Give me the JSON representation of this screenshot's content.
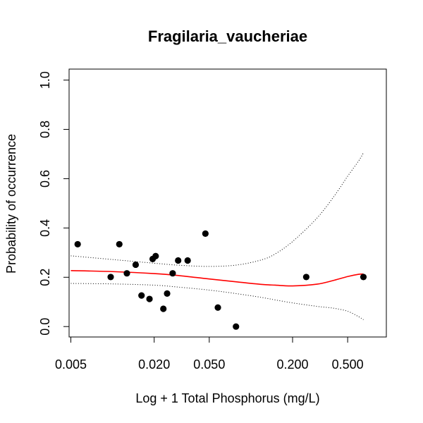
{
  "chart_data": {
    "type": "scatter",
    "title": "Fragilaria_vaucheriae",
    "xlabel": "Log + 1 Total Phosphorus (mg/L)",
    "ylabel": "Probability of occurrence",
    "x_scale": "log",
    "xlim": [
      0.005,
      0.8
    ],
    "ylim": [
      0.0,
      1.0
    ],
    "x_ticks": [
      0.005,
      0.02,
      0.05,
      0.2,
      0.5
    ],
    "x_tick_labels": [
      "0.005",
      "0.020",
      "0.050",
      "0.200",
      "0.500"
    ],
    "y_ticks": [
      0.0,
      0.2,
      0.4,
      0.6,
      0.8,
      1.0
    ],
    "y_tick_labels": [
      "0.0",
      "0.2",
      "0.4",
      "0.6",
      "0.8",
      "1.0"
    ],
    "grid": false,
    "points": [
      {
        "x": 0.0056,
        "y": 0.334
      },
      {
        "x": 0.0097,
        "y": 0.201
      },
      {
        "x": 0.0112,
        "y": 0.334
      },
      {
        "x": 0.0127,
        "y": 0.216
      },
      {
        "x": 0.0147,
        "y": 0.251
      },
      {
        "x": 0.0162,
        "y": 0.126
      },
      {
        "x": 0.0185,
        "y": 0.112
      },
      {
        "x": 0.0195,
        "y": 0.274
      },
      {
        "x": 0.0205,
        "y": 0.286
      },
      {
        "x": 0.0233,
        "y": 0.072
      },
      {
        "x": 0.0248,
        "y": 0.134
      },
      {
        "x": 0.0272,
        "y": 0.216
      },
      {
        "x": 0.0298,
        "y": 0.268
      },
      {
        "x": 0.0349,
        "y": 0.268
      },
      {
        "x": 0.0469,
        "y": 0.377
      },
      {
        "x": 0.0577,
        "y": 0.077
      },
      {
        "x": 0.078,
        "y": 0.0
      },
      {
        "x": 0.251,
        "y": 0.201
      },
      {
        "x": 0.65,
        "y": 0.201
      }
    ],
    "fit": {
      "color": "#ff0000",
      "x": [
        0.005,
        0.01,
        0.02,
        0.03,
        0.05,
        0.08,
        0.12,
        0.15,
        0.2,
        0.3,
        0.4,
        0.5,
        0.6,
        0.65
      ],
      "y": [
        0.227,
        0.223,
        0.215,
        0.207,
        0.193,
        0.181,
        0.171,
        0.168,
        0.165,
        0.172,
        0.188,
        0.203,
        0.212,
        0.213
      ]
    },
    "ci_upper": {
      "x": [
        0.005,
        0.01,
        0.02,
        0.03,
        0.05,
        0.08,
        0.12,
        0.15,
        0.2,
        0.3,
        0.4,
        0.5,
        0.6,
        0.65
      ],
      "y": [
        0.287,
        0.272,
        0.257,
        0.249,
        0.244,
        0.25,
        0.271,
        0.295,
        0.345,
        0.44,
        0.53,
        0.61,
        0.672,
        0.705
      ]
    },
    "ci_lower": {
      "x": [
        0.005,
        0.01,
        0.02,
        0.03,
        0.05,
        0.08,
        0.12,
        0.15,
        0.2,
        0.3,
        0.4,
        0.5,
        0.6,
        0.65
      ],
      "y": [
        0.175,
        0.173,
        0.168,
        0.16,
        0.148,
        0.133,
        0.118,
        0.108,
        0.096,
        0.082,
        0.074,
        0.062,
        0.04,
        0.028
      ]
    }
  }
}
